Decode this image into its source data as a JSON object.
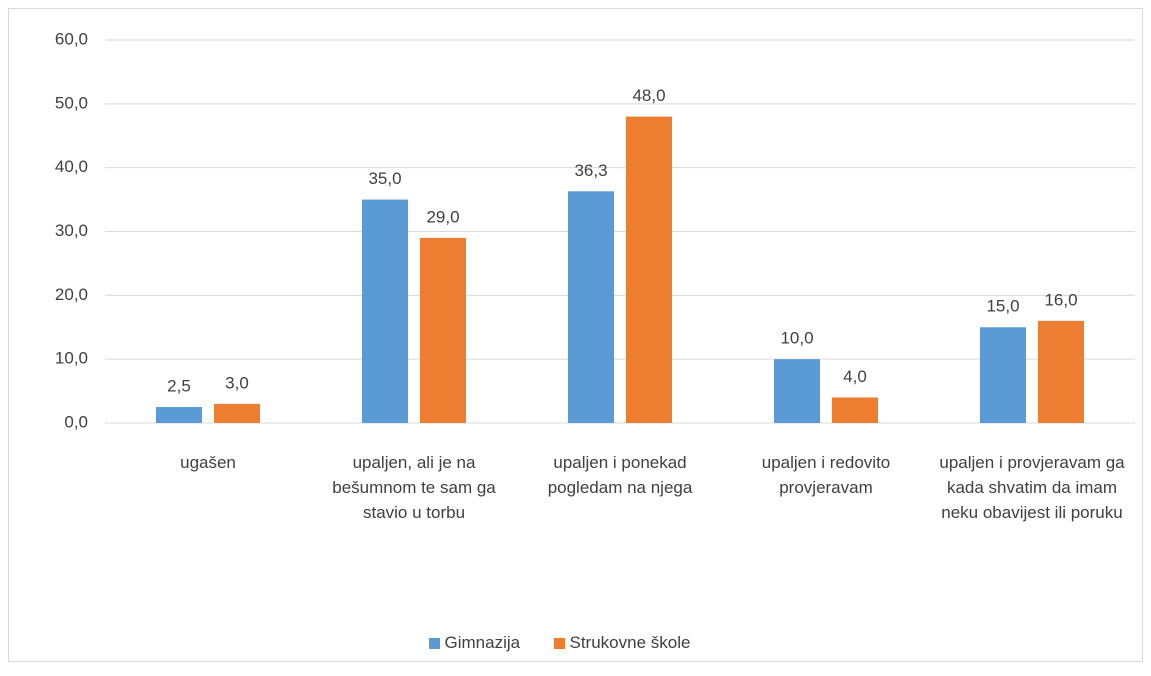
{
  "chart_data": {
    "type": "bar",
    "categories": [
      "ugašen",
      "upaljen, ali je na bešumnom te sam ga stavio u torbu",
      "upaljen i ponekad pogledam na njega",
      "upaljen i redovito provjeravam",
      "upaljen i provjeravam ga kada shvatim da imam neku obavijest ili poruku"
    ],
    "series": [
      {
        "name": "Gimnazija",
        "color": "#5b9bd5",
        "values": [
          2.5,
          35,
          36.3,
          10,
          15
        ],
        "value_labels": [
          "2,5",
          "35,0",
          "36,3",
          "10,0",
          "15,0"
        ]
      },
      {
        "name": "Strukovne škole",
        "color": "#ed7d31",
        "values": [
          3,
          29,
          48,
          4,
          16
        ],
        "value_labels": [
          "3,0",
          "29,0",
          "48,0",
          "4,0",
          "16,0"
        ]
      }
    ],
    "ylim": [
      0,
      60
    ],
    "yticks": [
      {
        "value": 0,
        "label": "0,0"
      },
      {
        "value": 10,
        "label": "10,0"
      },
      {
        "value": 20,
        "label": "20,0"
      },
      {
        "value": 30,
        "label": "30,0"
      },
      {
        "value": 40,
        "label": "40,0"
      },
      {
        "value": 50,
        "label": "50,0"
      },
      {
        "value": 60,
        "label": "60,0"
      }
    ],
    "grid": true,
    "legend": "bottom"
  }
}
